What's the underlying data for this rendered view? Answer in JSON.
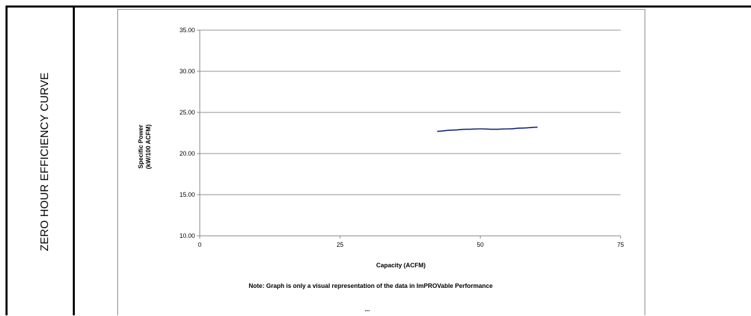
{
  "side_label": "ZERO HOUR EFFICIENCY CURVE",
  "chart_data": {
    "type": "line",
    "xlabel": "Capacity (ACFM)",
    "ylabel_line1": "Specific Power",
    "ylabel_line2": "(kW/100 ACFM)",
    "xlim": [
      0,
      75
    ],
    "ylim": [
      10,
      35
    ],
    "x_ticks": [
      0,
      25,
      50,
      75
    ],
    "y_ticks": [
      10,
      15,
      20,
      25,
      30,
      35
    ],
    "y_tick_labels": [
      "10.00",
      "15.00",
      "20.00",
      "25.00",
      "30.00",
      "35.00"
    ],
    "grid": "horizontal",
    "series": [
      {
        "color": "#0a1f6e",
        "x": [
          42.3,
          45,
          47.5,
          50,
          52.5,
          55,
          57.5,
          60.2
        ],
        "y": [
          22.7,
          22.85,
          22.95,
          23.0,
          22.95,
          23.0,
          23.1,
          23.2
        ]
      }
    ],
    "note": "Note:  Graph is only a visual representation of the data in ImPROVable Performance",
    "ellipsis": "..."
  }
}
